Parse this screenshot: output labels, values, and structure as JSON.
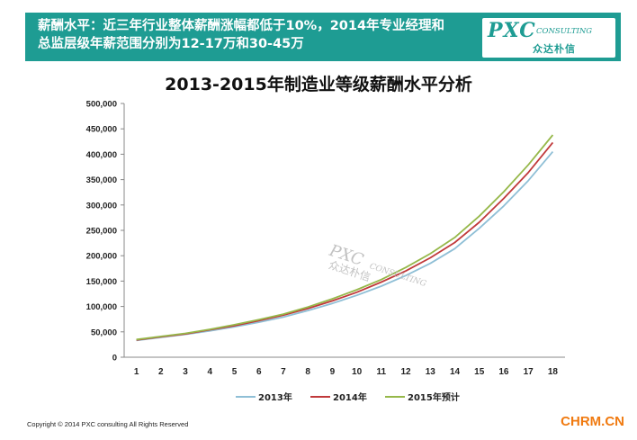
{
  "banner": {
    "line1": "薪酬水平：近三年行业整体薪酬涨幅都低于10%，2014年专业经理和",
    "line2": "总监层级年薪范围分别为12-17万和30-45万",
    "bg": "#1e9c93"
  },
  "brand": {
    "name": "PXC",
    "sub": "CONSULTING",
    "cn": "众达朴信"
  },
  "watermark": {
    "name": "PXC",
    "sub": "CONSULTING",
    "cn": "众达朴信"
  },
  "footer": {
    "copyright": "Copyright © 2014  PXC consulting All Rights Reserved",
    "site": "CHRM.CN"
  },
  "chart_data": {
    "type": "line",
    "title": "2013-2015年制造业等级薪酬水平分析",
    "xlabel": "",
    "ylabel": "",
    "x": [
      1,
      2,
      3,
      4,
      5,
      6,
      7,
      8,
      9,
      10,
      11,
      12,
      13,
      14,
      15,
      16,
      17,
      18
    ],
    "ylim": [
      0,
      500000
    ],
    "yticks": [
      0,
      50000,
      100000,
      150000,
      200000,
      250000,
      300000,
      350000,
      400000,
      450000,
      500000
    ],
    "ytick_labels": [
      "0",
      "50,000",
      "100,000",
      "150,000",
      "200,000",
      "250,000",
      "300,000",
      "350,000",
      "400,000",
      "450,000",
      "500,000"
    ],
    "grid": false,
    "legend_position": "bottom",
    "series": [
      {
        "name": "2013年",
        "color": "#8fbfd6",
        "values": [
          33000,
          39000,
          45000,
          52000,
          60000,
          69000,
          79000,
          92000,
          106000,
          122000,
          140000,
          161000,
          185000,
          214000,
          254000,
          298000,
          348000,
          405000
        ]
      },
      {
        "name": "2014年",
        "color": "#c0393b",
        "values": [
          34000,
          40000,
          46000,
          54000,
          62000,
          72000,
          83000,
          96000,
          111000,
          128000,
          148000,
          170000,
          196000,
          226000,
          266000,
          313000,
          364000,
          423000
        ]
      },
      {
        "name": "2015年预计",
        "color": "#96b84a",
        "values": [
          35000,
          41000,
          47000,
          55000,
          64000,
          74000,
          85000,
          99000,
          115000,
          133000,
          153000,
          177000,
          204000,
          236000,
          278000,
          326000,
          379000,
          438000
        ]
      }
    ]
  }
}
